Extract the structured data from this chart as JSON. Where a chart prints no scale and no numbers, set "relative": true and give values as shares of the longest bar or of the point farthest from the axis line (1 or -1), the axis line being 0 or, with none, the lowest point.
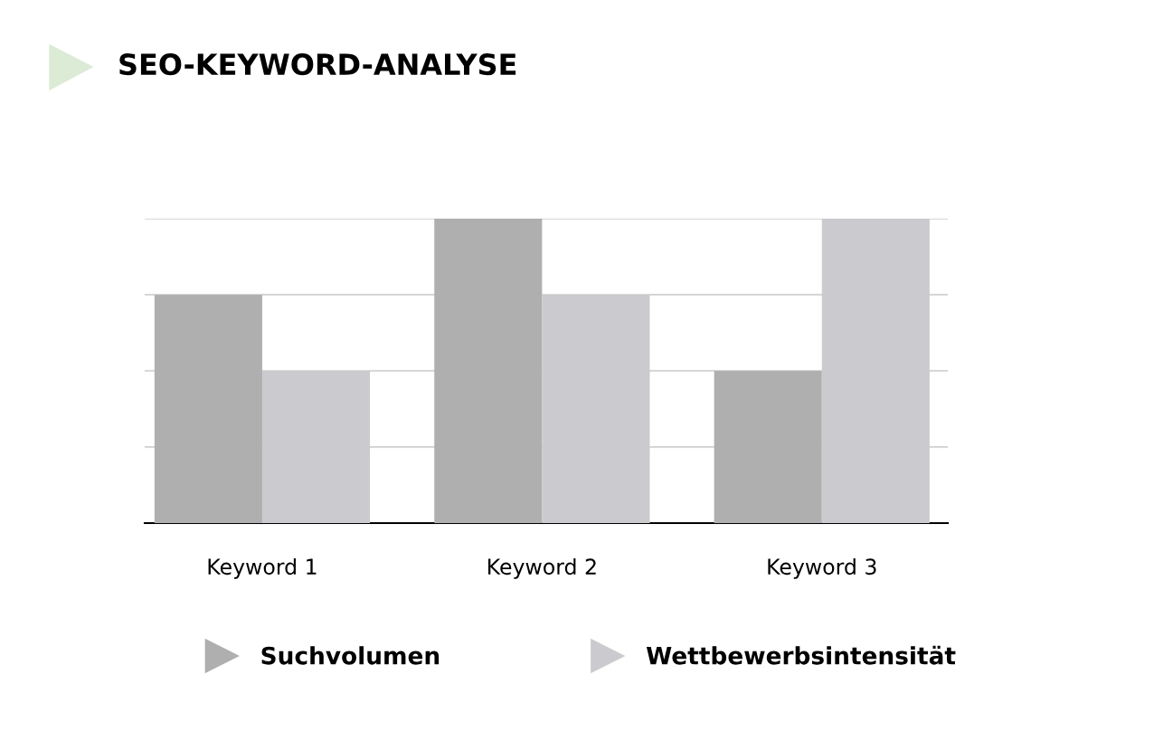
{
  "chart_data": {
    "type": "bar",
    "title": "SEO-KEYWORD-ANALYSE",
    "relative": true,
    "categories": [
      "Keyword 1",
      "Keyword 2",
      "Keyword 3"
    ],
    "series": [
      {
        "name": "Suchvolumen",
        "color": "#afafaf",
        "values": [
          0.75,
          1,
          0.5
        ]
      },
      {
        "name": "Wettbewerbsintensität",
        "color": "#cbcbcf",
        "values": [
          0.5,
          0.75,
          1
        ]
      }
    ],
    "grid": "y",
    "legend": "bottom",
    "tick_labels": "x"
  }
}
